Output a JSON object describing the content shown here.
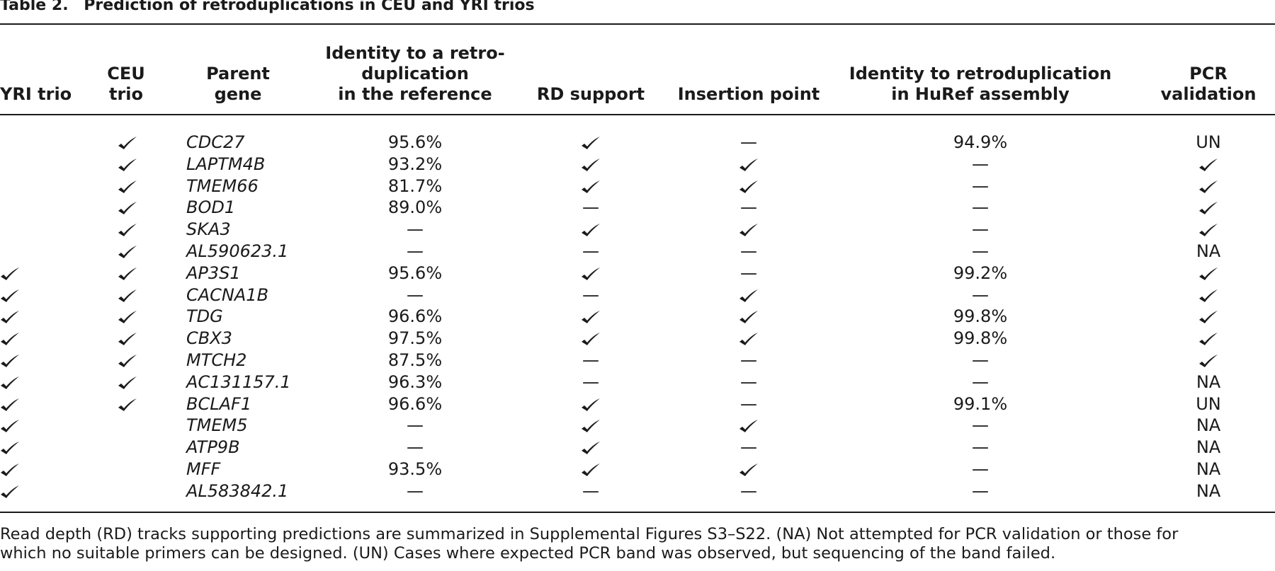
{
  "caption": {
    "label": "Table 2.",
    "title": "Prediction of retroduplications in CEU and YRI trios"
  },
  "columns": [
    {
      "key": "yri",
      "label": "YRI trio"
    },
    {
      "key": "ceu",
      "label": "CEU\ntrio"
    },
    {
      "key": "gene",
      "label": "Parent\ngene"
    },
    {
      "key": "identity_ref",
      "label": "Identity to a retro-\nduplication\nin the reference"
    },
    {
      "key": "rd",
      "label": "RD support"
    },
    {
      "key": "insertion",
      "label": "Insertion point"
    },
    {
      "key": "identity_huref",
      "label": "Identity to retroduplication\nin HuRef assembly"
    },
    {
      "key": "pcr",
      "label": "PCR validation"
    }
  ],
  "rows": [
    {
      "yri": "",
      "ceu": "check",
      "gene": "CDC27",
      "identity_ref": "95.6%",
      "rd": "check",
      "insertion": "—",
      "identity_huref": "94.9%",
      "pcr": "UN"
    },
    {
      "yri": "",
      "ceu": "check",
      "gene": "LAPTM4B",
      "identity_ref": "93.2%",
      "rd": "check",
      "insertion": "check",
      "identity_huref": "—",
      "pcr": "check"
    },
    {
      "yri": "",
      "ceu": "check",
      "gene": "TMEM66",
      "identity_ref": "81.7%",
      "rd": "check",
      "insertion": "check",
      "identity_huref": "—",
      "pcr": "check"
    },
    {
      "yri": "",
      "ceu": "check",
      "gene": "BOD1",
      "identity_ref": "89.0%",
      "rd": "—",
      "insertion": "—",
      "identity_huref": "—",
      "pcr": "check"
    },
    {
      "yri": "",
      "ceu": "check",
      "gene": "SKA3",
      "identity_ref": "—",
      "rd": "check",
      "insertion": "check",
      "identity_huref": "—",
      "pcr": "check"
    },
    {
      "yri": "",
      "ceu": "check",
      "gene": "AL590623.1",
      "identity_ref": "—",
      "rd": "—",
      "insertion": "—",
      "identity_huref": "—",
      "pcr": "NA"
    },
    {
      "yri": "check",
      "ceu": "check",
      "gene": "AP3S1",
      "identity_ref": "95.6%",
      "rd": "check",
      "insertion": "—",
      "identity_huref": "99.2%",
      "pcr": "check"
    },
    {
      "yri": "check",
      "ceu": "check",
      "gene": "CACNA1B",
      "identity_ref": "—",
      "rd": "—",
      "insertion": "check",
      "identity_huref": "—",
      "pcr": "check"
    },
    {
      "yri": "check",
      "ceu": "check",
      "gene": "TDG",
      "identity_ref": "96.6%",
      "rd": "check",
      "insertion": "check",
      "identity_huref": "99.8%",
      "pcr": "check"
    },
    {
      "yri": "check",
      "ceu": "check",
      "gene": "CBX3",
      "identity_ref": "97.5%",
      "rd": "check",
      "insertion": "check",
      "identity_huref": "99.8%",
      "pcr": "check"
    },
    {
      "yri": "check",
      "ceu": "check",
      "gene": "MTCH2",
      "identity_ref": "87.5%",
      "rd": "—",
      "insertion": "—",
      "identity_huref": "—",
      "pcr": "check"
    },
    {
      "yri": "check",
      "ceu": "check",
      "gene": "AC131157.1",
      "identity_ref": "96.3%",
      "rd": "—",
      "insertion": "—",
      "identity_huref": "—",
      "pcr": "NA"
    },
    {
      "yri": "check",
      "ceu": "check",
      "gene": "BCLAF1",
      "identity_ref": "96.6%",
      "rd": "check",
      "insertion": "—",
      "identity_huref": "99.1%",
      "pcr": "UN"
    },
    {
      "yri": "check",
      "ceu": "",
      "gene": "TMEM5",
      "identity_ref": "—",
      "rd": "check",
      "insertion": "check",
      "identity_huref": "—",
      "pcr": "NA"
    },
    {
      "yri": "check",
      "ceu": "",
      "gene": "ATP9B",
      "identity_ref": "—",
      "rd": "check",
      "insertion": "—",
      "identity_huref": "—",
      "pcr": "NA"
    },
    {
      "yri": "check",
      "ceu": "",
      "gene": "MFF",
      "identity_ref": "93.5%",
      "rd": "check",
      "insertion": "check",
      "identity_huref": "—",
      "pcr": "NA"
    },
    {
      "yri": "check",
      "ceu": "",
      "gene": "AL583842.1",
      "identity_ref": "—",
      "rd": "—",
      "insertion": "—",
      "identity_huref": "—",
      "pcr": "NA"
    }
  ],
  "footnote": [
    "Read depth (RD) tracks supporting predictions are summarized in Supplemental Figures S3–S22. (NA) Not attempted for PCR validation or those for",
    "which no suitable primers can be designed. (UN) Cases where expected PCR band was observed, but sequencing of the band failed."
  ],
  "icons": {
    "check": "checkmark-icon"
  }
}
